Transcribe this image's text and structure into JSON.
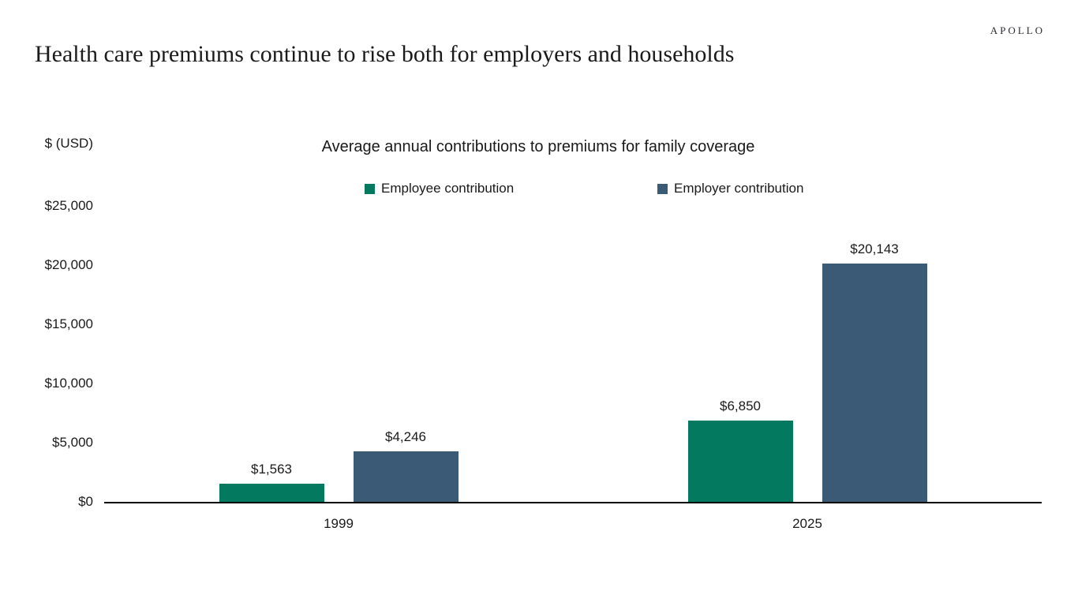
{
  "header": {
    "logo": "APOLLO",
    "title": "Health care premiums continue to rise both for employers and households"
  },
  "chart_data": {
    "type": "bar",
    "title": "Average annual contributions to premiums for family coverage",
    "ylabel": "$ (USD)",
    "categories": [
      "1999",
      "2025"
    ],
    "series": [
      {
        "name": "Employee contribution",
        "color": "#03795f",
        "values": [
          1563,
          6850
        ],
        "value_labels": [
          "$1,563",
          "$6,850"
        ]
      },
      {
        "name": "Employer contribution",
        "color": "#3b5a76",
        "values": [
          4246,
          20143
        ],
        "value_labels": [
          "$4,246",
          "$20,143"
        ]
      }
    ],
    "ylim": [
      0,
      25000
    ],
    "yticks": [
      {
        "value": 0,
        "label": "$0"
      },
      {
        "value": 5000,
        "label": "$5,000"
      },
      {
        "value": 10000,
        "label": "$10,000"
      },
      {
        "value": 15000,
        "label": "$15,000"
      },
      {
        "value": 20000,
        "label": "$20,000"
      },
      {
        "value": 25000,
        "label": "$25,000"
      }
    ],
    "grid": false,
    "legend_position": "top"
  }
}
